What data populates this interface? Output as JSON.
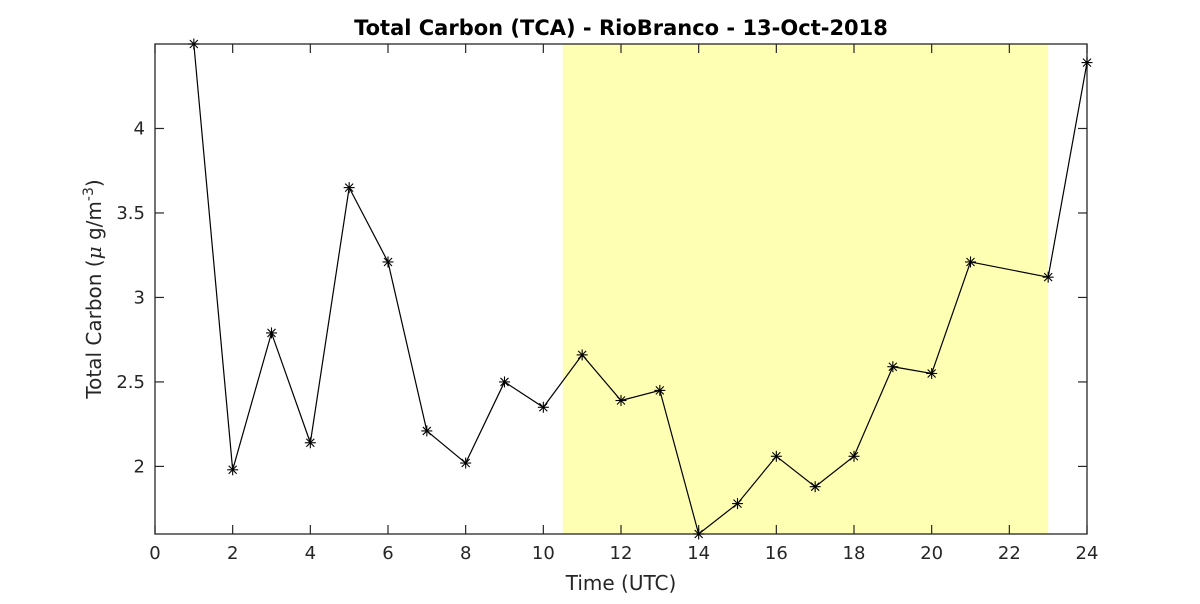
{
  "chart_data": {
    "type": "line",
    "title": "Total Carbon (TCA) - RioBranco - 13-Oct-2018",
    "xlabel": "Time (UTC)",
    "ylabel_parts": {
      "prefix": "Total Carbon (",
      "mu": "μ",
      "unit": " g/m",
      "exponent": "-3",
      "suffix": ")"
    },
    "xlim": [
      0,
      24
    ],
    "ylim": [
      1.6,
      4.5
    ],
    "x_ticks": [
      0,
      2,
      4,
      6,
      8,
      10,
      12,
      14,
      16,
      18,
      20,
      22,
      24
    ],
    "y_ticks": [
      2,
      2.5,
      3,
      3.5,
      4
    ],
    "y_tick_labels": [
      "2",
      "2.5",
      "3",
      "3.5",
      "4"
    ],
    "marker": "asterisk",
    "line_color": "#000000",
    "highlight_band": {
      "x_start": 10.5,
      "x_end": 23,
      "color": "#ffffb3"
    },
    "series": [
      {
        "x": [
          1,
          2,
          3,
          4,
          5,
          6,
          7,
          8,
          9,
          10,
          11,
          12,
          13,
          14,
          15,
          16,
          17,
          18,
          19,
          20,
          21,
          22,
          23,
          24
        ],
        "y": [
          4.5,
          1.98,
          2.79,
          2.14,
          3.65,
          3.21,
          2.21,
          2.02,
          2.5,
          2.35,
          2.66,
          2.39,
          2.45,
          1.6,
          1.78,
          2.06,
          1.88,
          2.06,
          2.59,
          2.55,
          3.21,
          null,
          3.12,
          4.39
        ]
      }
    ]
  }
}
